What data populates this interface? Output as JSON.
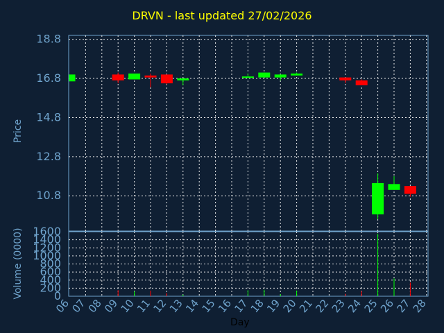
{
  "chart_data": {
    "type": "candlestick",
    "title": "DRVN - last updated 27/02/2026",
    "xlabel": "Day",
    "ylabel": "Price",
    "volume_ylabel": "Volume (0000)",
    "colors": {
      "up": "#00ff00",
      "down": "#ff0000",
      "axis_text": "#6fa3cc",
      "title": "#ffff00",
      "grid": "#e8e8e8"
    },
    "x_ticks": [
      "06",
      "07",
      "08",
      "09",
      "10",
      "11",
      "12",
      "13",
      "14",
      "15",
      "16",
      "17",
      "18",
      "19",
      "20",
      "21",
      "22",
      "23",
      "24",
      "25",
      "26",
      "27",
      "28"
    ],
    "price_ticks": [
      "18.8",
      "16.8",
      "14.8",
      "12.8",
      "10.8"
    ],
    "volume_ticks": [
      "1600",
      "1400",
      "1200",
      "1000",
      "800",
      "600",
      "400",
      "200",
      "0"
    ],
    "ylim_price": [
      9.0,
      19.0
    ],
    "ylim_volume": [
      0,
      1600
    ],
    "grid": true,
    "candles": [
      {
        "day": "06",
        "open": 16.65,
        "close": 17.0,
        "high": 17.0,
        "low": 16.65,
        "volume": 0
      },
      {
        "day": "09",
        "open": 17.0,
        "close": 16.7,
        "high": 17.1,
        "low": 16.55,
        "volume": 150
      },
      {
        "day": "10",
        "open": 16.75,
        "close": 17.05,
        "high": 17.05,
        "low": 16.75,
        "volume": 120
      },
      {
        "day": "11",
        "open": 16.95,
        "close": 16.85,
        "high": 17.05,
        "low": 16.35,
        "volume": 140
      },
      {
        "day": "12",
        "open": 17.0,
        "close": 16.55,
        "high": 17.0,
        "low": 16.5,
        "volume": 80
      },
      {
        "day": "13",
        "open": 16.7,
        "close": 16.8,
        "high": 16.8,
        "low": 16.45,
        "volume": 40
      },
      {
        "day": "17",
        "open": 16.85,
        "close": 16.9,
        "high": 17.05,
        "low": 16.8,
        "volume": 150
      },
      {
        "day": "18",
        "open": 16.85,
        "close": 17.1,
        "high": 17.1,
        "low": 16.85,
        "volume": 160
      },
      {
        "day": "19",
        "open": 16.85,
        "close": 17.0,
        "high": 17.0,
        "low": 16.7,
        "volume": 50
      },
      {
        "day": "20",
        "open": 16.95,
        "close": 17.05,
        "high": 17.1,
        "low": 16.95,
        "volume": 140
      },
      {
        "day": "23",
        "open": 16.85,
        "close": 16.7,
        "high": 16.85,
        "low": 16.55,
        "volume": 60
      },
      {
        "day": "24",
        "open": 16.7,
        "close": 16.45,
        "high": 16.75,
        "low": 16.45,
        "volume": 130
      },
      {
        "day": "25",
        "open": 9.85,
        "close": 11.45,
        "high": 11.95,
        "low": 9.6,
        "volume": 1550
      },
      {
        "day": "26",
        "open": 11.1,
        "close": 11.4,
        "high": 11.8,
        "low": 11.1,
        "volume": 440
      },
      {
        "day": "27",
        "open": 11.3,
        "close": 10.9,
        "high": 11.3,
        "low": 10.75,
        "volume": 340
      }
    ]
  }
}
